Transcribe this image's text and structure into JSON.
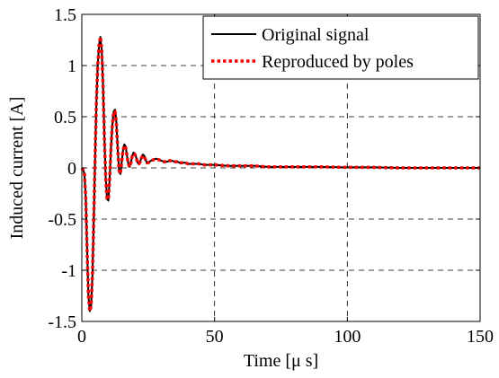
{
  "chart_data": {
    "type": "line",
    "title": "",
    "xlabel": "Time [μ s]",
    "ylabel": "Induced current [A]",
    "xlim": [
      0,
      150
    ],
    "ylim": [
      -1.5,
      1.5
    ],
    "grid": true,
    "grid_style": "dashed",
    "legend_position": "top-right",
    "x_ticks": [
      0,
      50,
      100,
      150
    ],
    "x_tick_labels": [
      "0",
      "50",
      "100",
      "150"
    ],
    "y_ticks": [
      -1.5,
      -1,
      -0.5,
      0,
      0.5,
      1,
      1.5
    ],
    "y_tick_labels": [
      "-1.5",
      "-1",
      "-0.5",
      "0",
      "0.5",
      "1",
      "1.5"
    ],
    "series": [
      {
        "name": "Original signal",
        "color": "#000000",
        "style": "solid",
        "x": [
          0,
          0.5,
          1,
          1.5,
          2,
          2.5,
          3,
          3.5,
          4,
          4.5,
          5,
          5.5,
          6,
          6.5,
          7,
          7.5,
          8,
          8.5,
          9,
          9.5,
          10,
          10.5,
          11,
          11.5,
          12,
          12.5,
          13,
          13.5,
          14,
          14.5,
          15,
          15.5,
          16,
          16.5,
          17,
          17.5,
          18,
          18.5,
          19,
          19.5,
          20,
          20.5,
          21,
          21.5,
          22,
          22.5,
          23,
          23.5,
          24,
          24.5,
          25,
          25.5,
          26,
          27,
          28,
          29,
          30,
          31,
          32,
          33,
          34,
          35,
          36,
          37,
          38,
          39,
          40,
          42,
          44,
          46,
          48,
          50,
          55,
          60,
          65,
          70,
          80,
          90,
          100,
          110,
          120,
          130,
          140,
          150
        ],
        "y": [
          0,
          -0.02,
          -0.06,
          -0.3,
          -0.8,
          -1.25,
          -1.4,
          -1.35,
          -1.05,
          -0.5,
          0.1,
          0.65,
          1.0,
          1.2,
          1.28,
          1.15,
          0.8,
          0.3,
          -0.1,
          -0.3,
          -0.32,
          -0.1,
          0.2,
          0.42,
          0.55,
          0.57,
          0.45,
          0.2,
          -0.02,
          -0.06,
          0.05,
          0.17,
          0.23,
          0.21,
          0.12,
          0.04,
          0.01,
          0.05,
          0.12,
          0.15,
          0.14,
          0.1,
          0.05,
          0.04,
          0.06,
          0.11,
          0.13,
          0.12,
          0.08,
          0.05,
          0.05,
          0.06,
          0.07,
          0.08,
          0.09,
          0.08,
          0.07,
          0.06,
          0.06,
          0.07,
          0.07,
          0.06,
          0.06,
          0.05,
          0.05,
          0.05,
          0.04,
          0.04,
          0.04,
          0.03,
          0.03,
          0.03,
          0.02,
          0.02,
          0.02,
          0.01,
          0.01,
          0.01,
          0.005,
          0.005,
          0,
          0,
          0,
          0
        ]
      },
      {
        "name": "Reproduced by poles",
        "color": "#ff0000",
        "style": "dotted",
        "x": [
          0,
          0.5,
          1,
          1.5,
          2,
          2.5,
          3,
          3.5,
          4,
          4.5,
          5,
          5.5,
          6,
          6.5,
          7,
          7.5,
          8,
          8.5,
          9,
          9.5,
          10,
          10.5,
          11,
          11.5,
          12,
          12.5,
          13,
          13.5,
          14,
          14.5,
          15,
          15.5,
          16,
          16.5,
          17,
          17.5,
          18,
          18.5,
          19,
          19.5,
          20,
          20.5,
          21,
          21.5,
          22,
          22.5,
          23,
          23.5,
          24,
          24.5,
          25,
          25.5,
          26,
          27,
          28,
          29,
          30,
          31,
          32,
          33,
          34,
          35,
          36,
          37,
          38,
          39,
          40,
          42,
          44,
          46,
          48,
          50,
          55,
          60,
          65,
          70,
          80,
          90,
          100,
          110,
          120,
          130,
          140,
          150
        ],
        "y": [
          0,
          -0.02,
          -0.06,
          -0.3,
          -0.8,
          -1.25,
          -1.4,
          -1.35,
          -1.05,
          -0.5,
          0.1,
          0.65,
          1.0,
          1.2,
          1.28,
          1.15,
          0.8,
          0.3,
          -0.1,
          -0.3,
          -0.31,
          -0.1,
          0.2,
          0.42,
          0.54,
          0.55,
          0.44,
          0.2,
          -0.02,
          -0.06,
          0.05,
          0.17,
          0.22,
          0.2,
          0.12,
          0.04,
          0.01,
          0.05,
          0.12,
          0.14,
          0.13,
          0.1,
          0.05,
          0.04,
          0.06,
          0.1,
          0.12,
          0.11,
          0.08,
          0.05,
          0.05,
          0.06,
          0.07,
          0.08,
          0.08,
          0.08,
          0.07,
          0.06,
          0.06,
          0.07,
          0.07,
          0.06,
          0.06,
          0.05,
          0.05,
          0.05,
          0.04,
          0.04,
          0.04,
          0.03,
          0.03,
          0.03,
          0.02,
          0.02,
          0.02,
          0.01,
          0.01,
          0.01,
          0.005,
          0.005,
          0,
          0,
          0,
          0
        ]
      }
    ]
  }
}
